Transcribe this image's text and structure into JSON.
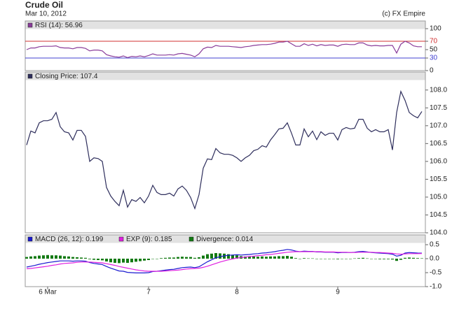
{
  "header": {
    "title": "Crude Oil",
    "date": "Mar 10, 2012",
    "source": "(c) FX Empire"
  },
  "chart_data": [
    {
      "type": "line",
      "label": "RSI (14): 56.96",
      "color": "#8a3c9a",
      "values": [
        50,
        54,
        54,
        57,
        58,
        58,
        58,
        59,
        55,
        54,
        54,
        52,
        55,
        55,
        53,
        47,
        49,
        49,
        47,
        38,
        35,
        33,
        32,
        35,
        31,
        34,
        33,
        35,
        33,
        36,
        40,
        37,
        37,
        37,
        38,
        37,
        40,
        41,
        39,
        37,
        33,
        40,
        52,
        56,
        55,
        60,
        58,
        58,
        58,
        57,
        56,
        55,
        57,
        58,
        60,
        61,
        62,
        62,
        63,
        65,
        68,
        68,
        70,
        64,
        58,
        58,
        64,
        60,
        63,
        59,
        62,
        60,
        61,
        61,
        58,
        62,
        63,
        62,
        62,
        66,
        66,
        61,
        59,
        60,
        59,
        59,
        60,
        60,
        42,
        63,
        70,
        66,
        59,
        57,
        56.96
      ],
      "ylim": [
        0,
        100
      ],
      "yticks": [
        0,
        30,
        50,
        70,
        100
      ],
      "ref_lines": [
        {
          "value": 70,
          "color": "#d03030"
        },
        {
          "value": 30,
          "color": "#4040d0"
        }
      ]
    },
    {
      "type": "line",
      "label": "Closing Price: 107.4",
      "color": "#2e2e5c",
      "values": [
        106.46,
        106.85,
        106.8,
        107.08,
        107.14,
        107.14,
        107.18,
        107.37,
        106.97,
        106.83,
        106.8,
        106.6,
        106.87,
        106.87,
        106.7,
        106.0,
        106.1,
        106.08,
        106.0,
        105.27,
        105.03,
        104.88,
        104.76,
        105.19,
        104.72,
        104.93,
        104.88,
        104.99,
        104.84,
        105.03,
        105.33,
        105.13,
        105.07,
        105.07,
        105.11,
        105.03,
        105.23,
        105.31,
        105.19,
        104.99,
        104.68,
        105.07,
        105.81,
        106.07,
        106.05,
        106.36,
        106.24,
        106.2,
        106.2,
        106.17,
        106.1,
        106.0,
        106.1,
        106.17,
        106.3,
        106.34,
        106.44,
        106.4,
        106.6,
        106.75,
        106.91,
        106.93,
        107.08,
        106.79,
        106.46,
        106.46,
        106.91,
        106.69,
        106.85,
        106.61,
        106.83,
        106.73,
        106.79,
        106.79,
        106.6,
        106.89,
        106.95,
        106.91,
        106.93,
        107.18,
        107.18,
        106.93,
        106.83,
        106.89,
        106.83,
        106.83,
        106.89,
        106.32,
        107.37,
        107.96,
        107.71,
        107.37,
        107.28,
        107.22,
        107.4
      ],
      "ylim": [
        104,
        108.25
      ],
      "yticks": [
        {
          "value": 104,
          "label": "104.0"
        },
        {
          "value": 104.5,
          "label": "104.5"
        },
        {
          "value": 105,
          "label": "105.0"
        },
        {
          "value": 105.5,
          "label": "105.5"
        },
        {
          "value": 106,
          "label": "106.0"
        },
        {
          "value": 106.5,
          "label": "106.5"
        },
        {
          "value": 107,
          "label": "107.0"
        },
        {
          "value": 107.5,
          "label": "107.5"
        },
        {
          "value": 108,
          "label": "108.0"
        }
      ]
    },
    {
      "type": "line",
      "categories": [
        null,
        null,
        null,
        null,
        null,
        "6 Mar",
        null,
        null,
        null,
        null,
        null,
        null,
        null,
        null,
        null,
        null,
        null,
        null,
        null,
        null,
        null,
        null,
        null,
        null,
        null,
        null,
        null,
        null,
        null,
        "7",
        null,
        null,
        null,
        null,
        null,
        null,
        null,
        null,
        null,
        null,
        null,
        null,
        null,
        null,
        null,
        null,
        null,
        null,
        null,
        null,
        "8",
        null,
        null,
        null,
        null,
        null,
        null,
        null,
        null,
        null,
        null,
        null,
        null,
        null,
        null,
        null,
        null,
        null,
        null,
        null,
        null,
        null,
        null,
        null,
        "9",
        null,
        null,
        null,
        null,
        null,
        null,
        null,
        null,
        null,
        null,
        null,
        null,
        null,
        null,
        null,
        null,
        null,
        null,
        null,
        null
      ],
      "series": [
        {
          "name": "MACD (26, 12): 0.199",
          "color": "#1a1ad0",
          "values": [
            -0.3,
            -0.27,
            -0.24,
            -0.2,
            -0.17,
            -0.14,
            -0.12,
            -0.1,
            -0.08,
            -0.08,
            -0.08,
            -0.09,
            -0.08,
            -0.08,
            -0.09,
            -0.14,
            -0.17,
            -0.19,
            -0.21,
            -0.28,
            -0.34,
            -0.39,
            -0.44,
            -0.45,
            -0.49,
            -0.5,
            -0.51,
            -0.51,
            -0.51,
            -0.5,
            -0.46,
            -0.45,
            -0.43,
            -0.41,
            -0.39,
            -0.38,
            -0.35,
            -0.32,
            -0.31,
            -0.3,
            -0.32,
            -0.29,
            -0.2,
            -0.11,
            -0.04,
            0.03,
            0.07,
            0.1,
            0.12,
            0.13,
            0.14,
            0.13,
            0.14,
            0.15,
            0.17,
            0.18,
            0.2,
            0.21,
            0.23,
            0.25,
            0.28,
            0.3,
            0.33,
            0.31,
            0.27,
            0.25,
            0.27,
            0.26,
            0.26,
            0.24,
            0.24,
            0.23,
            0.23,
            0.23,
            0.21,
            0.22,
            0.22,
            0.22,
            0.23,
            0.25,
            0.26,
            0.24,
            0.22,
            0.21,
            0.2,
            0.19,
            0.18,
            0.16,
            0.09,
            0.12,
            0.2,
            0.22,
            0.21,
            0.2,
            0.199
          ]
        },
        {
          "name": "EXP (9): 0.185",
          "color": "#e020e0",
          "values": [
            -0.36,
            -0.35,
            -0.33,
            -0.31,
            -0.29,
            -0.27,
            -0.24,
            -0.22,
            -0.19,
            -0.17,
            -0.16,
            -0.15,
            -0.13,
            -0.12,
            -0.12,
            -0.12,
            -0.13,
            -0.14,
            -0.15,
            -0.18,
            -0.21,
            -0.24,
            -0.28,
            -0.31,
            -0.34,
            -0.37,
            -0.4,
            -0.42,
            -0.44,
            -0.45,
            -0.45,
            -0.45,
            -0.45,
            -0.44,
            -0.43,
            -0.42,
            -0.41,
            -0.39,
            -0.37,
            -0.36,
            -0.35,
            -0.34,
            -0.31,
            -0.27,
            -0.22,
            -0.17,
            -0.12,
            -0.08,
            -0.04,
            -0.01,
            0.02,
            0.04,
            0.06,
            0.08,
            0.09,
            0.11,
            0.12,
            0.14,
            0.15,
            0.17,
            0.19,
            0.21,
            0.23,
            0.24,
            0.25,
            0.25,
            0.25,
            0.25,
            0.25,
            0.25,
            0.25,
            0.24,
            0.24,
            0.24,
            0.23,
            0.23,
            0.23,
            0.22,
            0.22,
            0.23,
            0.23,
            0.23,
            0.23,
            0.22,
            0.22,
            0.21,
            0.2,
            0.19,
            0.17,
            0.16,
            0.17,
            0.18,
            0.18,
            0.18,
            0.185
          ]
        },
        {
          "name": "Divergence: 0.014",
          "color": "#137a13",
          "kind": "bar",
          "values": [
            0.06,
            0.08,
            0.09,
            0.11,
            0.12,
            0.13,
            0.12,
            0.12,
            0.11,
            0.09,
            0.08,
            0.06,
            0.05,
            0.04,
            0.03,
            -0.02,
            -0.04,
            -0.05,
            -0.06,
            -0.1,
            -0.13,
            -0.15,
            -0.16,
            -0.14,
            -0.15,
            -0.13,
            -0.11,
            -0.09,
            -0.07,
            -0.05,
            -0.01,
            0.0,
            0.02,
            0.03,
            0.04,
            0.04,
            0.06,
            0.07,
            0.06,
            0.06,
            0.03,
            0.05,
            0.11,
            0.16,
            0.18,
            0.2,
            0.19,
            0.18,
            0.16,
            0.14,
            0.12,
            0.09,
            0.08,
            0.07,
            0.08,
            0.07,
            0.08,
            0.07,
            0.08,
            0.08,
            0.09,
            0.09,
            0.1,
            0.07,
            0.02,
            0.0,
            0.02,
            0.01,
            0.01,
            -0.01,
            -0.01,
            -0.01,
            -0.01,
            -0.01,
            -0.02,
            -0.01,
            -0.01,
            0.0,
            0.01,
            0.02,
            0.03,
            0.01,
            -0.01,
            -0.01,
            -0.02,
            -0.02,
            -0.02,
            -0.03,
            -0.08,
            -0.04,
            0.03,
            0.04,
            0.03,
            0.02,
            0.014
          ]
        }
      ],
      "ylim": [
        -1,
        0.55
      ],
      "yticks": [
        {
          "value": -1,
          "label": "-1.0"
        },
        -0.5,
        {
          "value": 0,
          "label": "0.0"
        },
        0.5
      ]
    }
  ]
}
